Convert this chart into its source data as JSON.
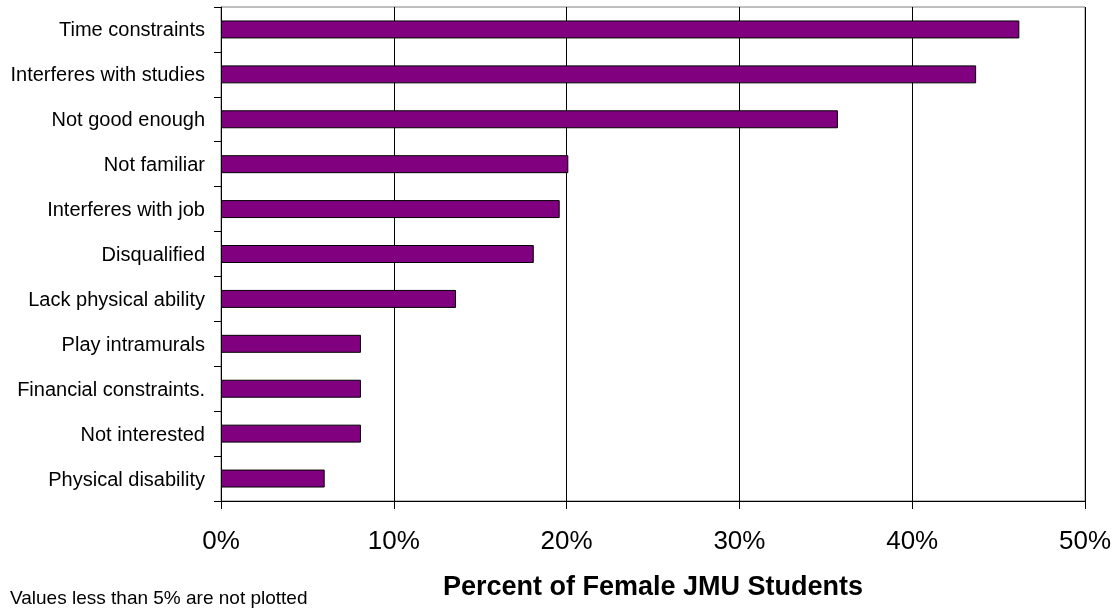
{
  "chart_data": {
    "type": "bar",
    "orientation": "horizontal",
    "categories": [
      "Time constraints",
      "Interferes with studies",
      "Not good enough",
      "Not familiar",
      "Interferes with job",
      "Disqualified",
      "Lack physical ability",
      "Play intramurals",
      "Financial constraints.",
      "Not interested",
      "Physical disability"
    ],
    "values": [
      46.2,
      43.7,
      35.7,
      20.1,
      19.6,
      18.1,
      13.6,
      8.1,
      8.1,
      8.1,
      6.0
    ],
    "color": "#800080",
    "xlabel": "Percent of Female JMU Students",
    "xlim": [
      0,
      50
    ],
    "xticks": [
      {
        "value": 0,
        "label": "0%"
      },
      {
        "value": 10,
        "label": "10%"
      },
      {
        "value": 20,
        "label": "20%"
      },
      {
        "value": 30,
        "label": "30%"
      },
      {
        "value": 40,
        "label": "40%"
      },
      {
        "value": 50,
        "label": "50%"
      }
    ],
    "grid": "x",
    "annotations": [
      "Values less than 5% are not plotted"
    ]
  }
}
